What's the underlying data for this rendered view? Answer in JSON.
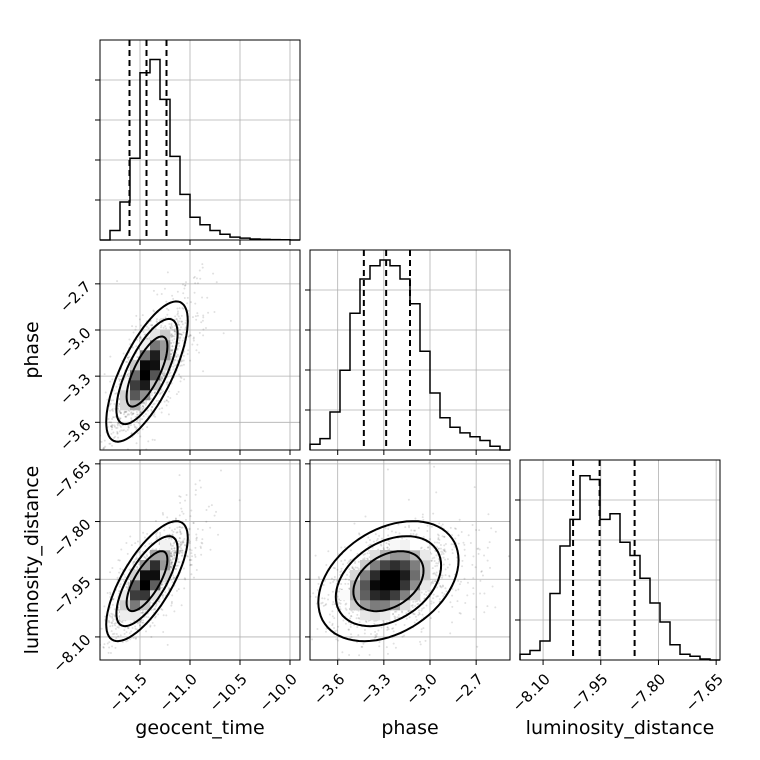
{
  "chart_data": {
    "type": "corner",
    "parameters": [
      "geocent_time",
      "phase",
      "luminosity_distance"
    ],
    "ranges": {
      "geocent_time": [
        -11.9,
        -9.9
      ],
      "phase": [
        -3.78,
        -2.48
      ],
      "luminosity_distance": [
        -8.16,
        -7.64
      ]
    },
    "ticks": {
      "geocent_time": [
        -11.5,
        -11.0,
        -10.5,
        -10.0
      ],
      "phase": [
        -3.6,
        -3.3,
        -3.0,
        -2.7
      ],
      "luminosity_distance": [
        -8.1,
        -7.95,
        -7.8,
        -7.65
      ]
    },
    "tick_labels": {
      "geocent_time": [
        "−11.5",
        "−11.0",
        "−10.5",
        "−10.0"
      ],
      "phase": [
        "−3.6",
        "−3.3",
        "−3.0",
        "−2.7"
      ],
      "luminosity_distance": [
        "−8.10",
        "−7.95",
        "−7.80",
        "−7.65"
      ]
    },
    "quantiles": {
      "geocent_time": [
        -11.605,
        -11.435,
        -11.235
      ],
      "phase": [
        -3.43,
        -3.285,
        -3.13
      ],
      "luminosity_distance": [
        -8.022,
        -7.953,
        -7.862
      ]
    },
    "histograms": {
      "geocent_time": {
        "edges_start": -11.9,
        "bin_width": 0.1,
        "counts": [
          0,
          0.05,
          0.2,
          0.43,
          0.88,
          0.95,
          0.74,
          0.44,
          0.24,
          0.12,
          0.08,
          0.05,
          0.03,
          0.015,
          0.01,
          0.005,
          0.003,
          0.002,
          0.001,
          0
        ]
      },
      "phase": {
        "edges_start": -3.78,
        "bin_width": 0.065,
        "counts": [
          0.03,
          0.06,
          0.2,
          0.42,
          0.72,
          0.9,
          0.97,
          1.0,
          0.97,
          0.9,
          0.77,
          0.52,
          0.3,
          0.17,
          0.12,
          0.09,
          0.07,
          0.05,
          0.02,
          0
        ]
      },
      "luminosity_distance": {
        "edges_start": -8.16,
        "bin_width": 0.026,
        "counts": [
          0.03,
          0.05,
          0.1,
          0.35,
          0.6,
          0.74,
          0.97,
          0.95,
          0.74,
          0.77,
          0.62,
          0.55,
          0.43,
          0.3,
          0.2,
          0.08,
          0.03,
          0.02,
          0.005,
          0
        ]
      }
    },
    "correlations": {
      "phase_vs_geocent_time": {
        "center": [
          -11.43,
          -3.27
        ],
        "sigma": [
          0.17,
          0.19
        ],
        "rho": 0.72
      },
      "luminosity_distance_vs_geocent_time": {
        "center": [
          -11.43,
          -7.955
        ],
        "sigma": [
          0.17,
          0.065
        ],
        "rho": 0.72
      },
      "luminosity_distance_vs_phase": {
        "center": [
          -3.27,
          -7.955
        ],
        "sigma": [
          0.19,
          0.065
        ],
        "rho": 0.35
      }
    },
    "contour_levels_sigma": [
      1,
      1.5,
      2
    ],
    "grid": true
  }
}
